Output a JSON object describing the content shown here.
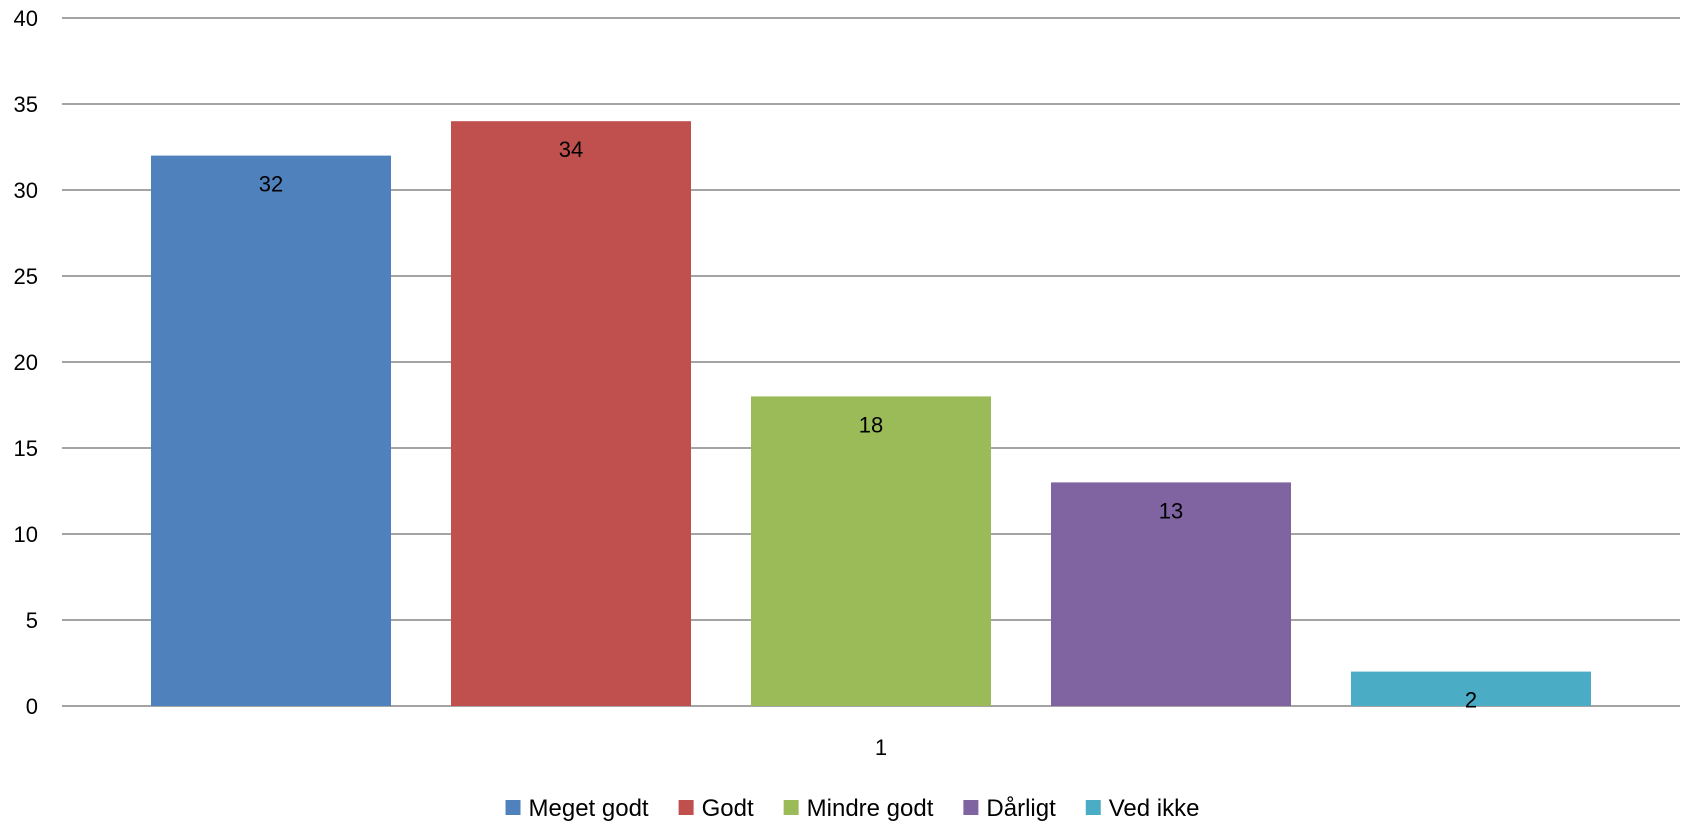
{
  "chart_data": {
    "type": "bar",
    "categories": [
      "1"
    ],
    "series": [
      {
        "name": "Meget godt",
        "values": [
          32
        ],
        "data_label": "32",
        "color": "#4F81BD"
      },
      {
        "name": "Godt",
        "values": [
          34
        ],
        "data_label": "34",
        "color": "#C0504D"
      },
      {
        "name": "Mindre godt",
        "values": [
          18
        ],
        "data_label": "18",
        "color": "#9BBB59"
      },
      {
        "name": "Dårligt",
        "values": [
          13
        ],
        "data_label": "13",
        "color": "#8064A2"
      },
      {
        "name": "Ved ikke",
        "values": [
          2
        ],
        "data_label": "2",
        "color": "#4BACC6"
      }
    ],
    "ylim": [
      0,
      40
    ],
    "yticks": [
      0,
      5,
      10,
      15,
      20,
      25,
      30,
      35,
      40
    ],
    "grid": true,
    "legend_position": "bottom",
    "title": "",
    "xlabel": "",
    "ylabel": ""
  }
}
